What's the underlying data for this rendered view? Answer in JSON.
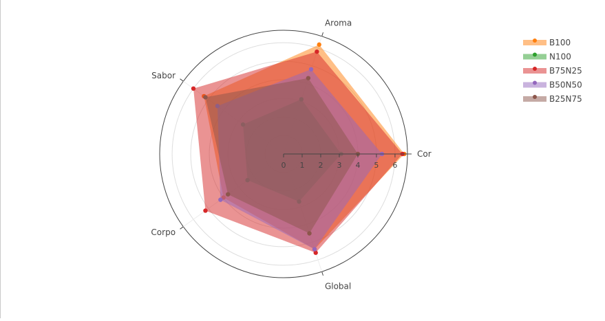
{
  "chart_data": {
    "type": "radar",
    "axes": [
      "Cor",
      "Aroma",
      "Sabor",
      "Corpo",
      "Global"
    ],
    "radial_ticks": [
      "0",
      "1",
      "2",
      "3",
      "4",
      "5",
      "6"
    ],
    "rlim": [
      0,
      6.67
    ],
    "grid": true,
    "legend_position": "top-right",
    "series": [
      {
        "name": "B100",
        "color": "#ff7f0e",
        "values": [
          6.5,
          6.2,
          5.3,
          4.0,
          5.4
        ]
      },
      {
        "name": "N100",
        "color": "#2ca02c",
        "values": [
          3.1,
          3.1,
          2.7,
          2.4,
          2.7
        ]
      },
      {
        "name": "B75N25",
        "color": "#d62728",
        "values": [
          6.4,
          5.8,
          6.0,
          5.2,
          5.6
        ]
      },
      {
        "name": "B50N50",
        "color": "#9467bd",
        "values": [
          5.3,
          4.8,
          4.4,
          4.2,
          5.4
        ]
      },
      {
        "name": "B25N75",
        "color": "#8c564b",
        "values": [
          4.0,
          4.3,
          5.2,
          3.7,
          4.5
        ]
      }
    ]
  }
}
